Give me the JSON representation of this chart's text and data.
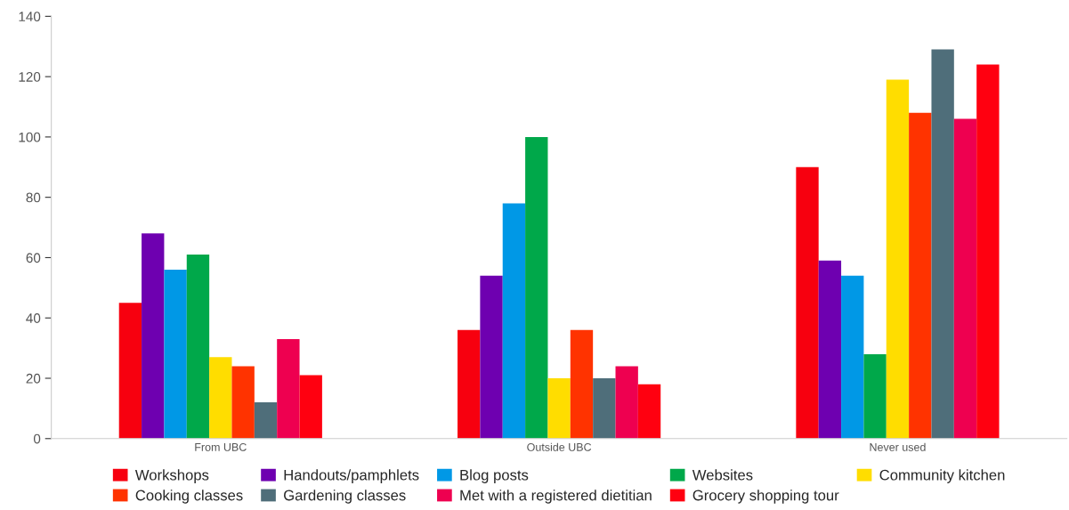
{
  "chart_data": {
    "type": "bar",
    "categories": [
      "From UBC",
      "Outside UBC",
      "Never used"
    ],
    "series": [
      {
        "name": "Workshops",
        "color": "#f7000f",
        "values": [
          45,
          36,
          90
        ]
      },
      {
        "name": "Handouts/pamphlets",
        "color": "#6e00b0",
        "values": [
          68,
          54,
          59
        ]
      },
      {
        "name": "Blog posts",
        "color": "#0098e6",
        "values": [
          56,
          78,
          54
        ]
      },
      {
        "name": "Websites",
        "color": "#00a84a",
        "values": [
          61,
          100,
          28
        ]
      },
      {
        "name": "Community kitchen",
        "color": "#ffdd00",
        "values": [
          27,
          20,
          119
        ]
      },
      {
        "name": "Cooking classes",
        "color": "#ff3300",
        "values": [
          24,
          36,
          108
        ]
      },
      {
        "name": "Gardening classes",
        "color": "#4f6e7a",
        "values": [
          12,
          20,
          129
        ]
      },
      {
        "name": "Met with a registered dietitian",
        "color": "#ee0050",
        "values": [
          33,
          24,
          106
        ]
      },
      {
        "name": "Grocery shopping tour",
        "color": "#ff0010",
        "values": [
          21,
          18,
          124
        ]
      }
    ],
    "ylim": [
      0,
      140
    ],
    "yticks": [
      0,
      20,
      40,
      60,
      80,
      100,
      120,
      140
    ],
    "grid": false,
    "legend": "bottom"
  }
}
